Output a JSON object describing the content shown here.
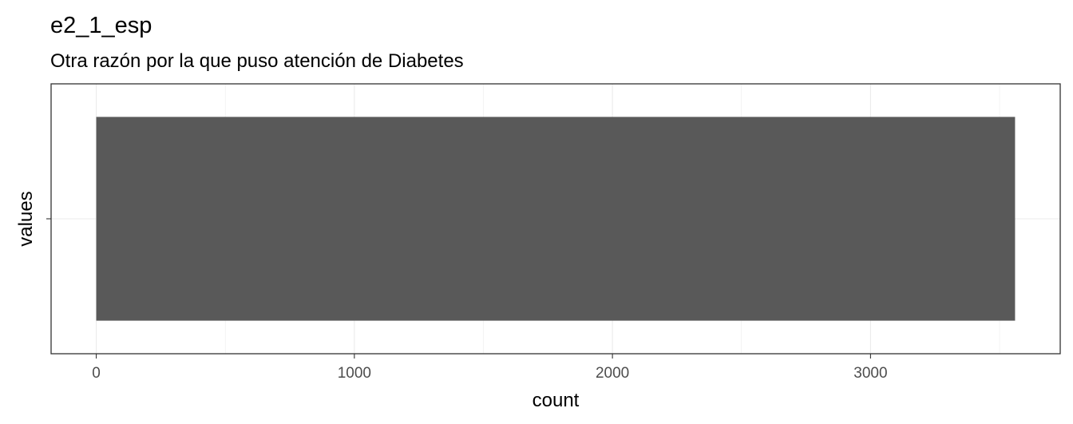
{
  "chart_data": {
    "type": "bar",
    "orientation": "horizontal",
    "title": "e2_1_esp",
    "subtitle": "Otra razón por la que puso atención de Diabetes",
    "xlabel": "count",
    "ylabel": "values",
    "categories": [
      ""
    ],
    "values": [
      3560
    ],
    "xlim": [
      -175,
      3735
    ],
    "xticks": [
      0,
      1000,
      2000,
      3000
    ],
    "xtick_labels": [
      "0",
      "1000",
      "2000",
      "3000"
    ],
    "grid": true,
    "legend": "none",
    "colors": {
      "bar": "#595959",
      "grid": "#ebebeb",
      "panel_border": "#333333",
      "tick_label": "#4d4d4d"
    }
  }
}
